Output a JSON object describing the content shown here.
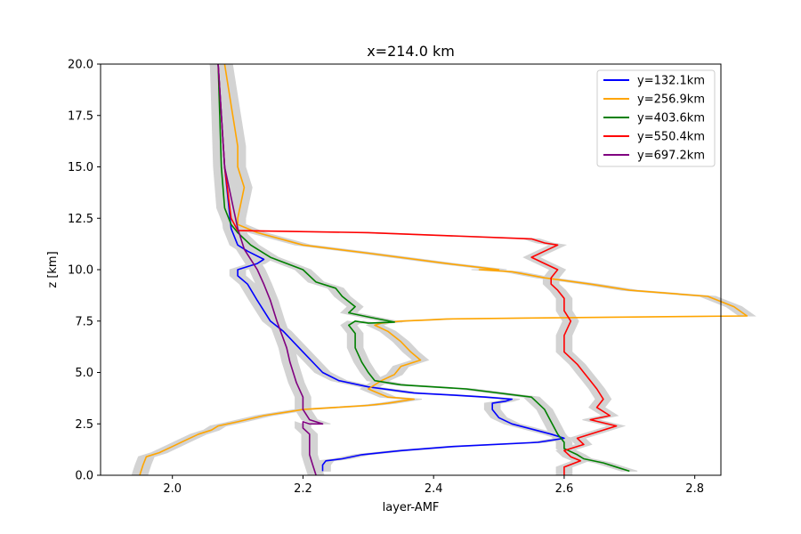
{
  "chart_data": {
    "type": "line",
    "title": "x=214.0 km",
    "xlabel": "layer-AMF",
    "ylabel": "z [km]",
    "xlim": [
      1.89,
      2.84
    ],
    "ylim": [
      0,
      20
    ],
    "xticks": [
      2.0,
      2.2,
      2.4,
      2.6,
      2.8
    ],
    "xtick_labels": [
      "2.0",
      "2.2",
      "2.4",
      "2.6",
      "2.8"
    ],
    "yticks": [
      0,
      2.5,
      5,
      7.5,
      10,
      12.5,
      15,
      17.5,
      20
    ],
    "ytick_labels": [
      "0.0",
      "2.5",
      "5.0",
      "7.5",
      "10.0",
      "12.5",
      "15.0",
      "17.5",
      "20.0"
    ],
    "grid": false,
    "legend_position": "top-right",
    "uncertainty_band_color": "#d3d3d3",
    "uncertainty_half_width": 0.012,
    "series": [
      {
        "name": "y=132.1km",
        "color": "#0000ff",
        "x": [
          2.23,
          2.23,
          2.235,
          2.26,
          2.29,
          2.35,
          2.43,
          2.56,
          2.6,
          2.58,
          2.52,
          2.5,
          2.49,
          2.49,
          2.51,
          2.52,
          2.48,
          2.43,
          2.37,
          2.3,
          2.255,
          2.23,
          2.2,
          2.17,
          2.15,
          2.13,
          2.115,
          2.1,
          2.1,
          2.13,
          2.14,
          2.115,
          2.1,
          2.09,
          2.08,
          2.07
        ],
        "y": [
          0.2,
          0.5,
          0.7,
          0.8,
          1.0,
          1.2,
          1.4,
          1.6,
          1.8,
          2.0,
          2.5,
          2.8,
          3.2,
          3.5,
          3.6,
          3.7,
          3.8,
          3.9,
          4.0,
          4.3,
          4.6,
          5.0,
          6.0,
          7.0,
          7.5,
          8.5,
          9.3,
          9.7,
          10.0,
          10.3,
          10.5,
          10.9,
          11.2,
          12.0,
          15.0,
          20.0
        ]
      },
      {
        "name": "y=256.9km",
        "color": "#ffa500",
        "x": [
          1.95,
          1.955,
          1.96,
          1.98,
          2.0,
          2.02,
          2.04,
          2.06,
          2.07,
          2.1,
          2.14,
          2.18,
          2.2,
          2.25,
          2.3,
          2.33,
          2.37,
          2.33,
          2.3,
          2.32,
          2.34,
          2.35,
          2.38,
          2.365,
          2.35,
          2.33,
          2.31,
          2.32,
          2.35,
          2.39,
          2.42,
          2.55,
          2.88,
          2.86,
          2.82,
          2.7,
          2.64,
          2.57,
          2.52,
          2.47,
          2.5,
          2.42,
          2.3,
          2.2,
          2.13,
          2.1,
          2.1,
          2.11,
          2.1,
          2.1,
          2.09,
          2.08
        ],
        "y": [
          0.0,
          0.5,
          0.9,
          1.1,
          1.4,
          1.7,
          2.0,
          2.2,
          2.4,
          2.6,
          2.9,
          3.1,
          3.2,
          3.3,
          3.4,
          3.5,
          3.7,
          3.8,
          4.2,
          4.6,
          4.9,
          5.3,
          5.6,
          6.0,
          6.5,
          7.0,
          7.3,
          7.4,
          7.5,
          7.55,
          7.6,
          7.65,
          7.75,
          8.2,
          8.7,
          9.0,
          9.3,
          9.6,
          9.9,
          10.0,
          10.0,
          10.3,
          10.8,
          11.2,
          11.8,
          12.2,
          12.5,
          14.0,
          15.0,
          16.0,
          18.0,
          20.0
        ]
      },
      {
        "name": "y=403.6km",
        "color": "#008000",
        "x": [
          2.7,
          2.68,
          2.66,
          2.63,
          2.62,
          2.6,
          2.6,
          2.59,
          2.58,
          2.57,
          2.55,
          2.45,
          2.35,
          2.31,
          2.3,
          2.29,
          2.28,
          2.28,
          2.27,
          2.28,
          2.3,
          2.34,
          2.3,
          2.27,
          2.28,
          2.26,
          2.25,
          2.22,
          2.2,
          2.15,
          2.12,
          2.1,
          2.09,
          2.08,
          2.075,
          2.07
        ],
        "y": [
          0.2,
          0.4,
          0.6,
          0.8,
          1.0,
          1.3,
          1.6,
          2.0,
          2.6,
          3.2,
          3.8,
          4.2,
          4.4,
          4.6,
          5.0,
          5.5,
          6.2,
          6.9,
          7.3,
          7.5,
          7.4,
          7.45,
          7.7,
          7.9,
          8.2,
          8.7,
          9.1,
          9.4,
          10.0,
          10.6,
          11.2,
          11.8,
          12.2,
          13.0,
          15.0,
          20.0
        ]
      },
      {
        "name": "y=550.4km",
        "color": "#ff0000",
        "x": [
          2.6,
          2.6,
          2.625,
          2.61,
          2.6,
          2.63,
          2.62,
          2.65,
          2.68,
          2.64,
          2.67,
          2.65,
          2.66,
          2.65,
          2.64,
          2.63,
          2.62,
          2.6,
          2.6,
          2.61,
          2.6,
          2.6,
          2.59,
          2.58,
          2.58,
          2.59,
          2.57,
          2.55,
          2.57,
          2.59,
          2.57,
          2.55,
          2.3,
          2.1,
          2.09,
          2.08,
          2.075,
          2.07
        ],
        "y": [
          0.0,
          0.4,
          0.7,
          0.9,
          1.2,
          1.5,
          1.8,
          2.1,
          2.4,
          2.7,
          2.9,
          3.3,
          3.7,
          4.2,
          4.6,
          5.0,
          5.4,
          6.0,
          6.8,
          7.5,
          8.0,
          8.6,
          9.0,
          9.3,
          9.6,
          10.0,
          10.3,
          10.6,
          10.9,
          11.2,
          11.3,
          11.5,
          11.8,
          11.9,
          12.5,
          15.0,
          17.5,
          20.0
        ]
      },
      {
        "name": "y=697.2km",
        "color": "#800080",
        "x": [
          2.22,
          2.215,
          2.21,
          2.21,
          2.21,
          2.2,
          2.2,
          2.21,
          2.23,
          2.21,
          2.2,
          2.2,
          2.19,
          2.18,
          2.175,
          2.16,
          2.15,
          2.14,
          2.13,
          2.12,
          2.11,
          2.1,
          2.08,
          2.07
        ],
        "y": [
          0.0,
          0.5,
          1.0,
          1.5,
          2.0,
          2.3,
          2.6,
          2.5,
          2.5,
          2.7,
          3.2,
          3.8,
          4.5,
          5.5,
          6.2,
          7.5,
          8.5,
          9.3,
          10.0,
          10.5,
          11.0,
          12.0,
          15.0,
          20.0
        ]
      }
    ]
  }
}
